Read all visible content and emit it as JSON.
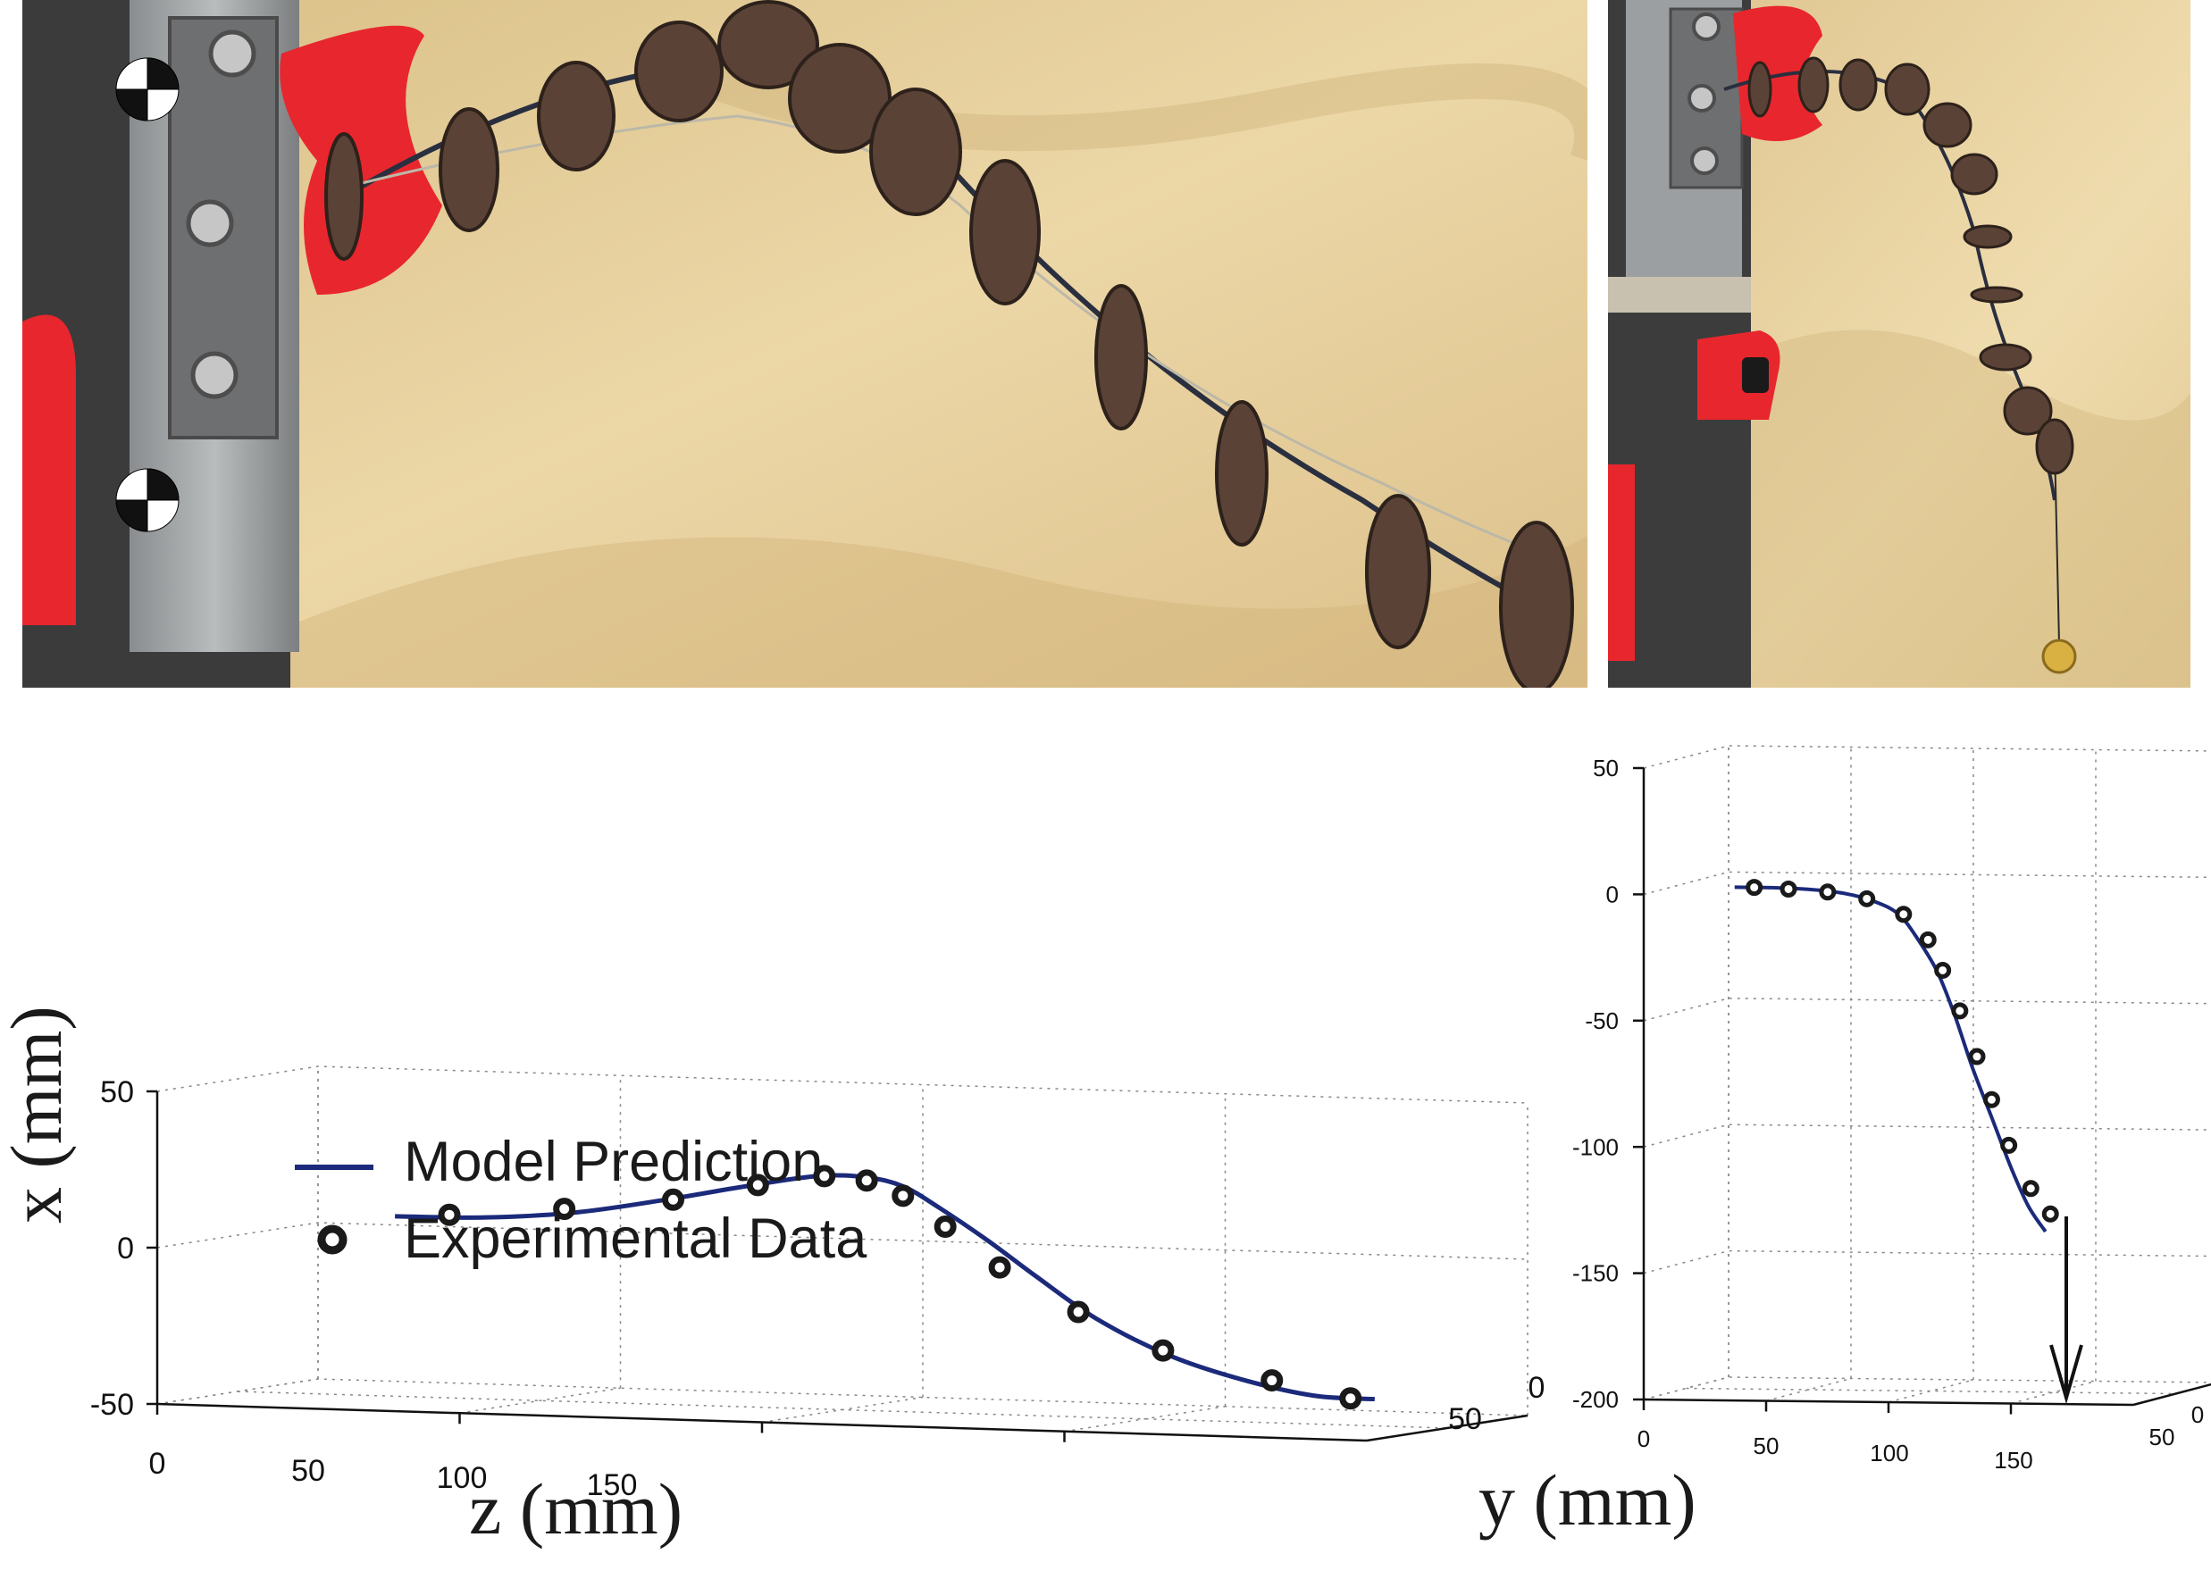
{
  "photos": {
    "left": {
      "description_icon": "robot-arm-photo-unloaded"
    },
    "right": {
      "description_icon": "robot-arm-photo-loaded"
    }
  },
  "colors": {
    "model_line": "#1b2a7a",
    "data_marker": "#1a1a1a",
    "grid": "#888888",
    "red_clamp": "#e8262d",
    "background_cloth": "#e6cf9a"
  },
  "chart_data": [
    {
      "type": "line",
      "view": "3d",
      "title": "",
      "xlabel": "z (mm)",
      "ylabel": "x (mm)",
      "zlabel": "y (mm)",
      "grid": true,
      "legend_position": "center-left",
      "axes": {
        "x_ticks": [
          "0",
          "50",
          "100",
          "150"
        ],
        "y_ticks": [
          "50",
          "0",
          "-50"
        ],
        "z_ticks": [
          "50",
          "0"
        ],
        "xlim": [
          0,
          200
        ],
        "ylim": [
          -50,
          50
        ],
        "zlim": [
          0,
          50
        ]
      },
      "legend": {
        "model": "Model Prediction",
        "data": "Experimental Data"
      },
      "series": [
        {
          "name": "Model Prediction",
          "style": "line",
          "x": [
            30,
            45,
            60,
            75,
            88,
            100,
            108,
            114,
            120,
            128,
            136,
            146,
            158,
            170,
            182,
            192
          ],
          "y": [
            9,
            9.5,
            12,
            17,
            22,
            26,
            26,
            23.5,
            17,
            7,
            -4,
            -17,
            -28,
            -35,
            -39.5,
            -40
          ]
        },
        {
          "name": "Experimental Data",
          "style": "marker",
          "x": [
            39,
            58,
            76,
            90,
            101,
            108,
            114,
            121,
            130,
            143,
            157,
            175,
            188
          ],
          "y": [
            10,
            13,
            17,
            22.5,
            26,
            25,
            20.5,
            11,
            -1.5,
            -15,
            -26.5,
            -35,
            -40
          ]
        }
      ]
    },
    {
      "type": "line",
      "view": "3d",
      "title": "",
      "xlabel": "",
      "ylabel": "",
      "zlabel": "y (mm)",
      "grid": true,
      "axes": {
        "x_ticks": [
          "0",
          "50",
          "100",
          "150"
        ],
        "y_ticks": [
          "50",
          "0",
          "-50",
          "-100",
          "-150",
          "-200"
        ],
        "z_ticks": [
          "50",
          "0"
        ],
        "xlim": [
          0,
          200
        ],
        "ylim": [
          -200,
          50
        ],
        "zlim": [
          0,
          50
        ]
      },
      "annotation": "downward-arrow-load",
      "series": [
        {
          "name": "Model Prediction",
          "style": "line",
          "x": [
            25,
            40,
            55,
            70,
            82,
            92,
            100,
            108,
            115,
            122,
            130,
            138,
            145,
            152
          ],
          "y": [
            0,
            0,
            -0.5,
            -2,
            -5,
            -10,
            -20,
            -33,
            -50,
            -70,
            -90,
            -110,
            -125,
            -135
          ]
        },
        {
          "name": "Experimental Data",
          "style": "marker",
          "x": [
            33,
            47,
            63,
            79,
            94,
            104,
            110,
            117,
            124,
            130,
            137,
            146,
            154
          ],
          "y": [
            0,
            -0.5,
            -1.5,
            -4,
            -10,
            -20,
            -32,
            -48,
            -66,
            -83,
            -101,
            -118,
            -128
          ]
        }
      ]
    }
  ]
}
